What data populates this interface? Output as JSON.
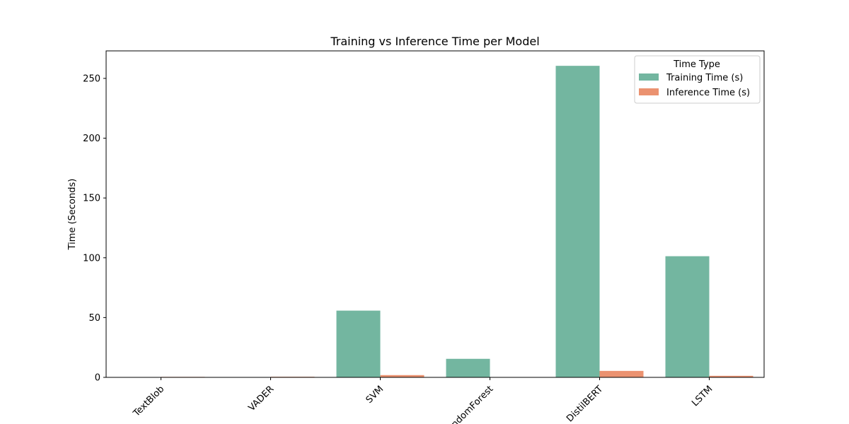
{
  "chart_data": {
    "type": "bar",
    "title": "Training vs Inference Time per Model",
    "xlabel": "",
    "ylabel": "Time (Seconds)",
    "categories": [
      "TextBlob",
      "VADER",
      "SVM",
      "RandomForest",
      "DistilBERT",
      "LSTM"
    ],
    "series": [
      {
        "name": "Training Time (s)",
        "color": "#73b6a0",
        "values": [
          0,
          0,
          55.8,
          15.5,
          260.5,
          101.3
        ]
      },
      {
        "name": "Inference Time (s)",
        "color": "#eb9270",
        "values": [
          0.4,
          0.5,
          1.9,
          0.1,
          5.4,
          1.3
        ]
      }
    ],
    "ylim": [
      0,
      273
    ],
    "yticks": [
      0,
      50,
      100,
      150,
      200,
      250
    ],
    "legend": {
      "title": "Time Type",
      "placement": "top-right"
    },
    "grid": false
  }
}
